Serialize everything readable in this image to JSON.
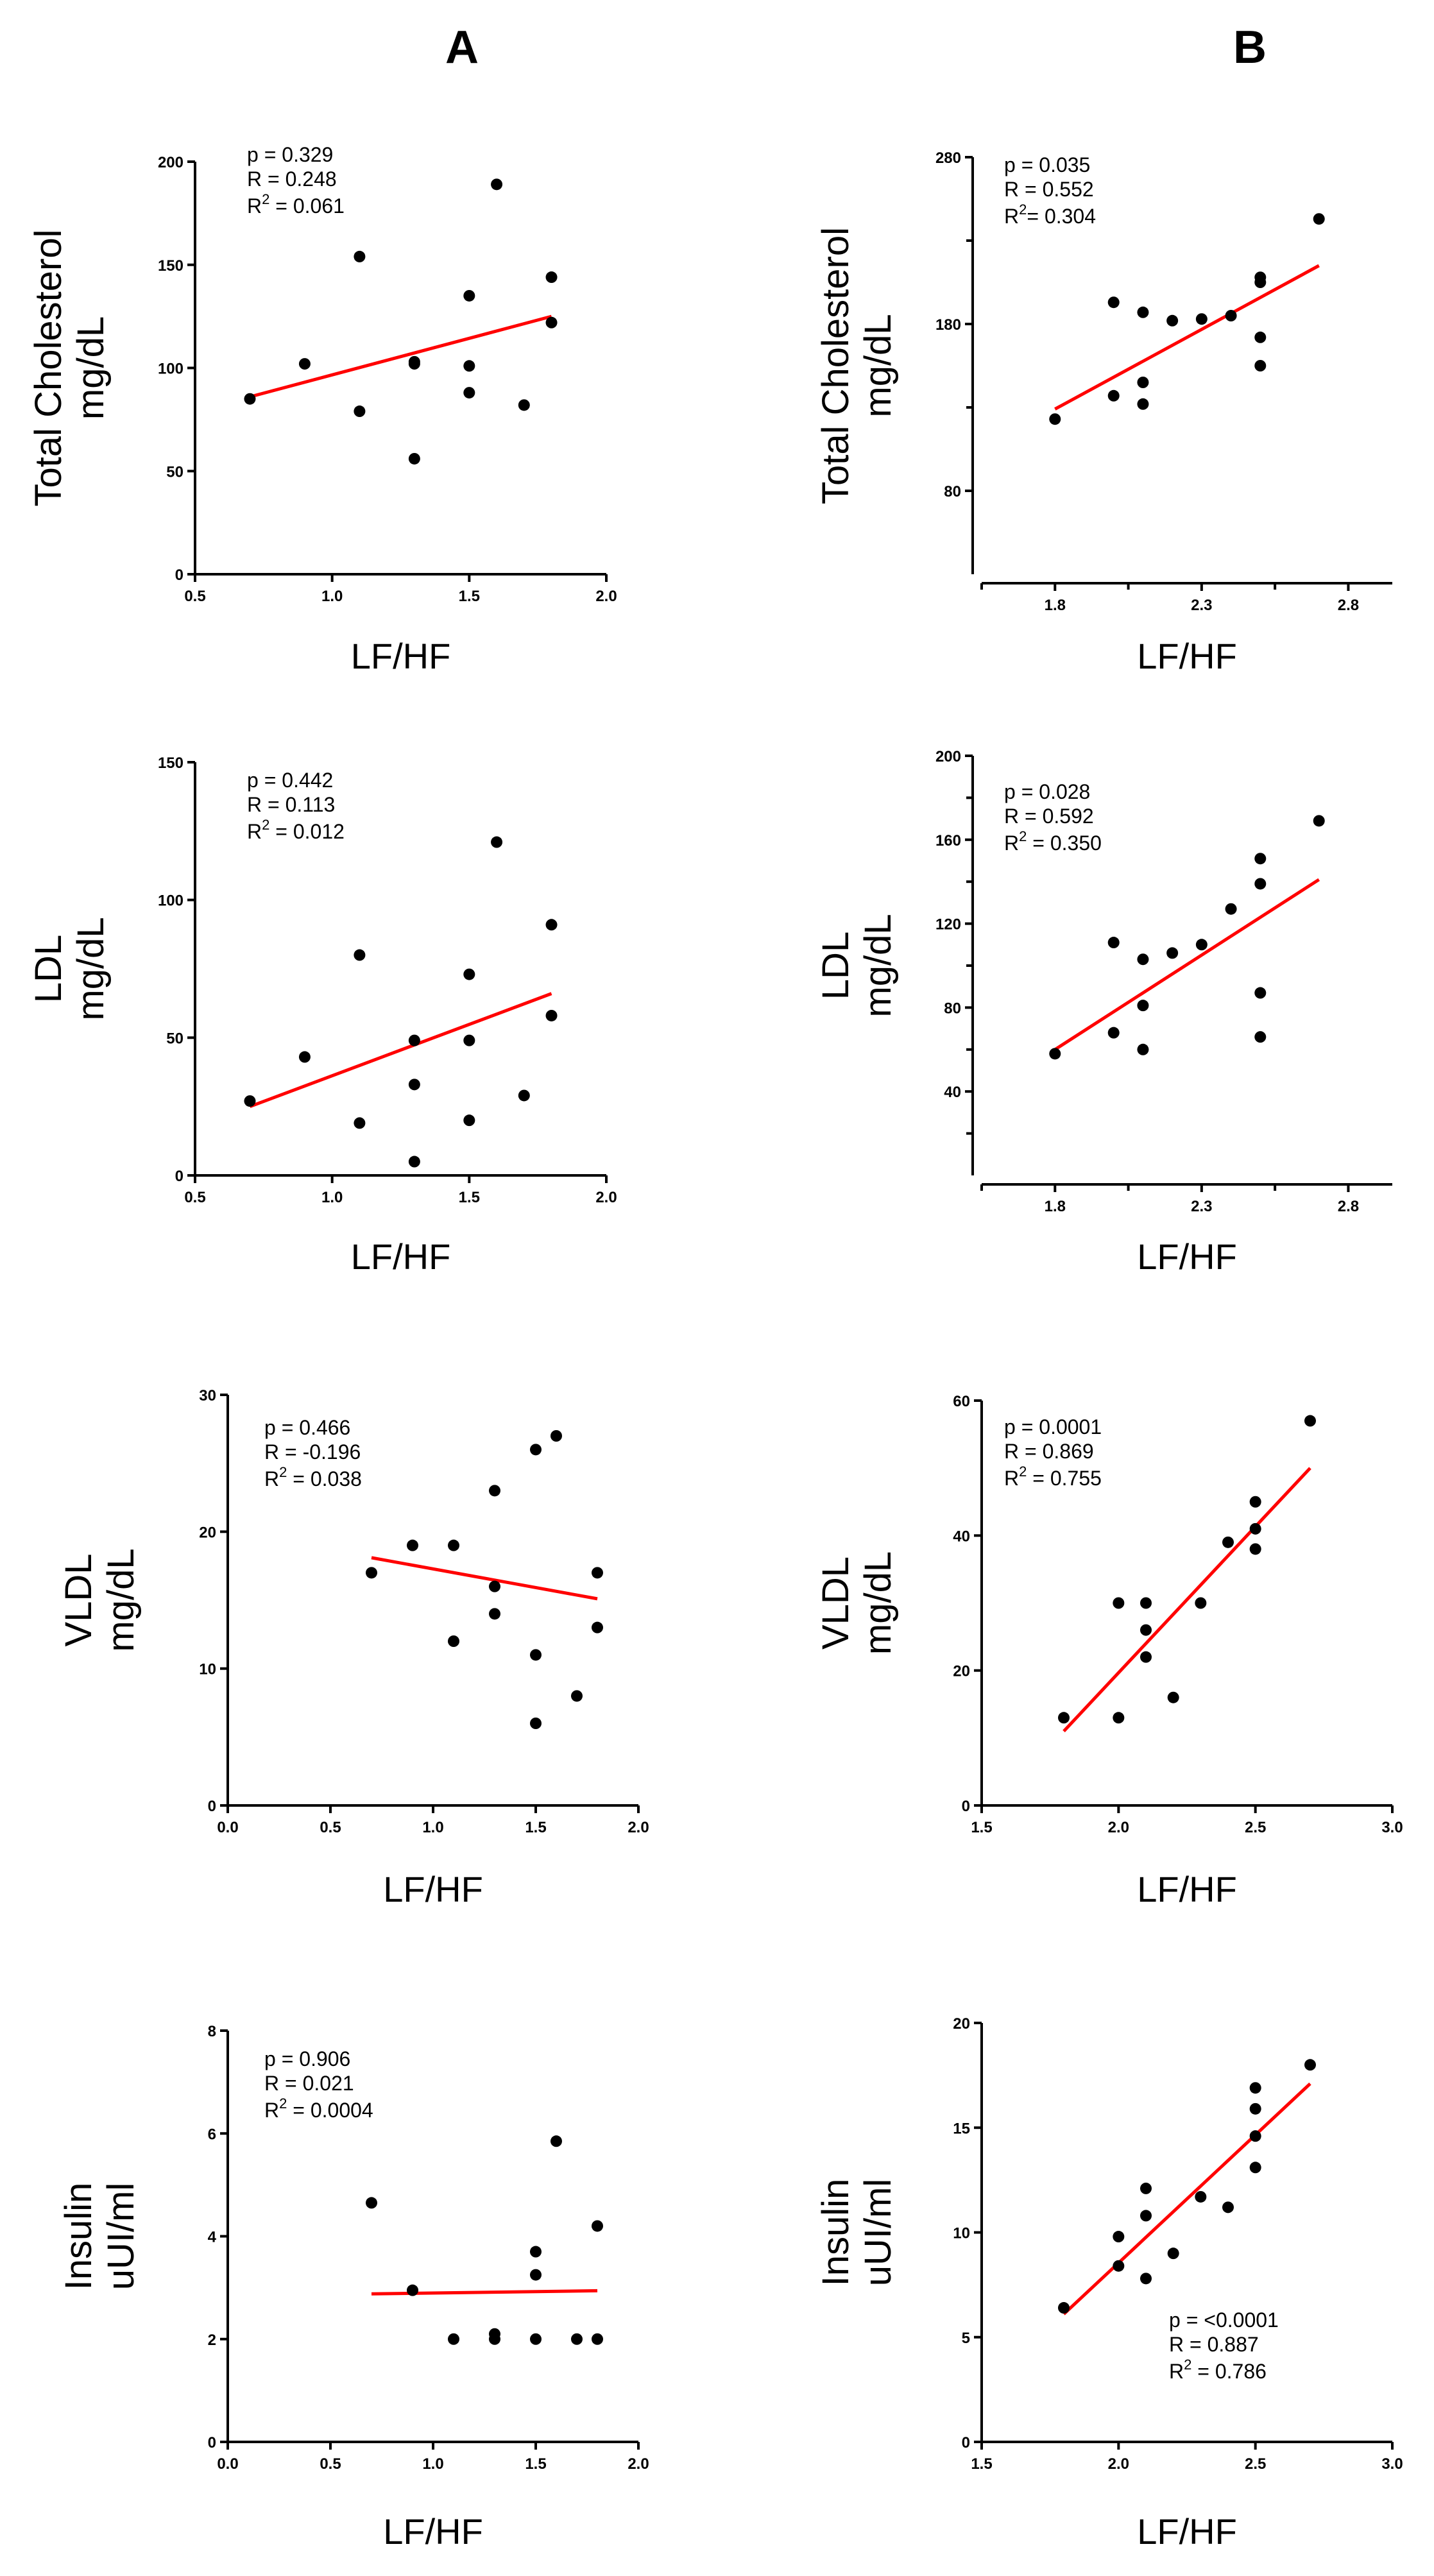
{
  "columns": [
    "A",
    "B"
  ],
  "chart_data": [
    {
      "id": "A1",
      "type": "scatter",
      "column": "A",
      "ylabel": [
        "Total Cholesterol",
        "mg/dL"
      ],
      "xlabel": "LF/HF",
      "xlim": [
        0.5,
        2.0
      ],
      "ylim": [
        0,
        200
      ],
      "xticks": [
        0.5,
        1.0,
        1.5,
        2.0
      ],
      "xtick_labels": [
        "0.5",
        "1.0",
        "1.5",
        "2.0"
      ],
      "yticks": [
        0,
        50,
        100,
        150,
        200
      ],
      "ytick_labels": [
        "0",
        "50",
        "100",
        "150",
        "200"
      ],
      "offset_axes": false,
      "stats_position": "top-left",
      "stats": {
        "p": "p = 0.329",
        "R": "R = 0.248",
        "R2_prefix": "R",
        "R2_value": " = 0.061"
      },
      "points": [
        [
          0.7,
          85
        ],
        [
          0.9,
          102
        ],
        [
          1.1,
          79
        ],
        [
          1.1,
          154
        ],
        [
          1.3,
          56
        ],
        [
          1.3,
          102
        ],
        [
          1.3,
          103
        ],
        [
          1.5,
          101
        ],
        [
          1.5,
          88
        ],
        [
          1.5,
          135
        ],
        [
          1.6,
          189
        ],
        [
          1.7,
          82
        ],
        [
          1.8,
          144
        ],
        [
          1.8,
          122
        ]
      ],
      "fit": [
        [
          0.7,
          86
        ],
        [
          1.8,
          125
        ]
      ]
    },
    {
      "id": "B1",
      "type": "scatter",
      "column": "B",
      "ylabel": [
        "Total Cholesterol",
        "mg/dL"
      ],
      "xlabel": "LF/HF",
      "xlim": [
        1.55,
        2.95
      ],
      "ylim": [
        30,
        280
      ],
      "xticks": [
        1.8,
        2.3,
        2.8
      ],
      "xtick_labels": [
        "1.8",
        "2.3",
        "2.8"
      ],
      "yticks": [
        80,
        180,
        280
      ],
      "ytick_labels": [
        "80",
        "180",
        "280"
      ],
      "offset_axes": true,
      "stats_position": "top-left",
      "stats": {
        "p": "p = 0.035",
        "R": "R = 0.552",
        "R2_prefix": "R",
        "R2_value": "= 0.304"
      },
      "points": [
        [
          1.8,
          123
        ],
        [
          2.0,
          137
        ],
        [
          2.0,
          193
        ],
        [
          2.1,
          132
        ],
        [
          2.1,
          145
        ],
        [
          2.1,
          187
        ],
        [
          2.2,
          182
        ],
        [
          2.3,
          183
        ],
        [
          2.4,
          185
        ],
        [
          2.5,
          155
        ],
        [
          2.5,
          172
        ],
        [
          2.5,
          205
        ],
        [
          2.5,
          208
        ],
        [
          2.7,
          243
        ]
      ],
      "fit": [
        [
          1.8,
          129
        ],
        [
          2.7,
          215
        ]
      ]
    },
    {
      "id": "A2",
      "type": "scatter",
      "column": "A",
      "ylabel": [
        "LDL",
        "mg/dL"
      ],
      "xlabel": "LF/HF",
      "xlim": [
        0.5,
        2.0
      ],
      "ylim": [
        0,
        150
      ],
      "xticks": [
        0.5,
        1.0,
        1.5,
        2.0
      ],
      "xtick_labels": [
        "0.5",
        "1.0",
        "1.5",
        "2.0"
      ],
      "yticks": [
        0,
        50,
        100,
        150
      ],
      "ytick_labels": [
        "0",
        "50",
        "100",
        "150"
      ],
      "offset_axes": false,
      "stats_position": "top-left",
      "stats": {
        "p": "p = 0.442",
        "R": "R = 0.113",
        "R2_prefix": "R",
        "R2_value": " = 0.012"
      },
      "points": [
        [
          0.7,
          27
        ],
        [
          0.9,
          43
        ],
        [
          1.1,
          19
        ],
        [
          1.1,
          80
        ],
        [
          1.3,
          5
        ],
        [
          1.3,
          33
        ],
        [
          1.3,
          49
        ],
        [
          1.5,
          20
        ],
        [
          1.5,
          49
        ],
        [
          1.5,
          73
        ],
        [
          1.6,
          121
        ],
        [
          1.7,
          29
        ],
        [
          1.8,
          58
        ],
        [
          1.8,
          91
        ]
      ],
      "fit": [
        [
          0.7,
          25
        ],
        [
          1.8,
          66
        ]
      ]
    },
    {
      "id": "B2",
      "type": "scatter",
      "column": "B",
      "ylabel": [
        "LDL",
        "mg/dL"
      ],
      "xlabel": "LF/HF",
      "xlim": [
        1.55,
        2.95
      ],
      "ylim": [
        0,
        200
      ],
      "xticks": [
        1.8,
        2.3,
        2.8
      ],
      "xtick_labels": [
        "1.8",
        "2.3",
        "2.8"
      ],
      "yticks": [
        40,
        80,
        120,
        160,
        200
      ],
      "ytick_labels": [
        "40",
        "80",
        "120",
        "160",
        "200"
      ],
      "offset_axes": true,
      "stats_position": "top-left",
      "stats": {
        "p": "p = 0.028",
        "R": "R = 0.592",
        "R2_prefix": "R",
        "R2_value": " = 0.350"
      },
      "points": [
        [
          1.8,
          58
        ],
        [
          2.0,
          68
        ],
        [
          2.0,
          111
        ],
        [
          2.1,
          60
        ],
        [
          2.1,
          81
        ],
        [
          2.1,
          103
        ],
        [
          2.2,
          106
        ],
        [
          2.3,
          110
        ],
        [
          2.4,
          127
        ],
        [
          2.5,
          66
        ],
        [
          2.5,
          87
        ],
        [
          2.5,
          139
        ],
        [
          2.5,
          151
        ],
        [
          2.7,
          169
        ]
      ],
      "fit": [
        [
          1.8,
          60
        ],
        [
          2.7,
          141
        ]
      ]
    },
    {
      "id": "A3",
      "type": "scatter",
      "column": "A",
      "ylabel": [
        "VLDL",
        "mg/dL"
      ],
      "xlabel": "LF/HF",
      "xlim": [
        0.0,
        2.0
      ],
      "ylim": [
        0,
        30
      ],
      "xticks": [
        0.0,
        0.5,
        1.0,
        1.5,
        2.0
      ],
      "xtick_labels": [
        "0.0",
        "0.5",
        "1.0",
        "1.5",
        "2.0"
      ],
      "yticks": [
        0,
        10,
        20,
        30
      ],
      "ytick_labels": [
        "0",
        "10",
        "20",
        "30"
      ],
      "offset_axes": false,
      "stats_position": "top-left",
      "stats": {
        "p": "p = 0.466",
        "R": "R = -0.196",
        "R2_prefix": "R",
        "R2_value": " = 0.038"
      },
      "points": [
        [
          0.7,
          17
        ],
        [
          0.9,
          19
        ],
        [
          1.1,
          19
        ],
        [
          1.1,
          12
        ],
        [
          1.3,
          23
        ],
        [
          1.3,
          16
        ],
        [
          1.3,
          14
        ],
        [
          1.5,
          26
        ],
        [
          1.5,
          11
        ],
        [
          1.5,
          6
        ],
        [
          1.6,
          27
        ],
        [
          1.7,
          8
        ],
        [
          1.8,
          17
        ],
        [
          1.8,
          13
        ]
      ],
      "fit": [
        [
          0.7,
          18.1
        ],
        [
          1.8,
          15.1
        ]
      ]
    },
    {
      "id": "B3",
      "type": "scatter",
      "column": "B",
      "ylabel": [
        "VLDL",
        "mg/dL"
      ],
      "xlabel": "LF/HF",
      "xlim": [
        1.5,
        3.0
      ],
      "ylim": [
        0,
        60
      ],
      "xticks": [
        1.5,
        2.0,
        2.5,
        3.0
      ],
      "xtick_labels": [
        "1.5",
        "2.0",
        "2.5",
        "3.0"
      ],
      "yticks": [
        0,
        20,
        40,
        60
      ],
      "ytick_labels": [
        "0",
        "20",
        "40",
        "60"
      ],
      "offset_axes": false,
      "stats_position": "top-left",
      "stats": {
        "p": "p = 0.0001",
        "R": "R = 0.869",
        "R2_prefix": "R",
        "R2_value": " = 0.755"
      },
      "points": [
        [
          1.8,
          13
        ],
        [
          2.0,
          13
        ],
        [
          2.0,
          30
        ],
        [
          2.1,
          30
        ],
        [
          2.1,
          26
        ],
        [
          2.1,
          22
        ],
        [
          2.2,
          16
        ],
        [
          2.3,
          30
        ],
        [
          2.4,
          39
        ],
        [
          2.5,
          45
        ],
        [
          2.5,
          41
        ],
        [
          2.5,
          38
        ],
        [
          2.7,
          57
        ]
      ],
      "fit": [
        [
          1.8,
          11
        ],
        [
          2.7,
          50
        ]
      ]
    },
    {
      "id": "A4",
      "type": "scatter",
      "column": "A",
      "ylabel": [
        "Insulin",
        "uUI/ml"
      ],
      "xlabel": "LF/HF",
      "xlim": [
        0.0,
        2.0
      ],
      "ylim": [
        0,
        8
      ],
      "xticks": [
        0.0,
        0.5,
        1.0,
        1.5,
        2.0
      ],
      "xtick_labels": [
        "0.0",
        "0.5",
        "1.0",
        "1.5",
        "2.0"
      ],
      "yticks": [
        0,
        2,
        4,
        6,
        8
      ],
      "ytick_labels": [
        "0",
        "2",
        "4",
        "6",
        "8"
      ],
      "offset_axes": false,
      "stats_position": "top-left",
      "stats": {
        "p": "p = 0.906",
        "R": "R = 0.021",
        "R2_prefix": "R",
        "R2_value": " = 0.0004"
      },
      "points": [
        [
          0.7,
          4.65
        ],
        [
          0.9,
          2.95
        ],
        [
          1.1,
          2.0
        ],
        [
          1.3,
          2.0
        ],
        [
          1.3,
          2.1
        ],
        [
          1.5,
          2.0
        ],
        [
          1.5,
          3.25
        ],
        [
          1.5,
          3.7
        ],
        [
          1.6,
          5.85
        ],
        [
          1.7,
          2.0
        ],
        [
          1.8,
          2.0
        ],
        [
          1.8,
          4.2
        ]
      ],
      "fit": [
        [
          0.7,
          2.88
        ],
        [
          1.8,
          2.94
        ]
      ]
    },
    {
      "id": "B4",
      "type": "scatter",
      "column": "B",
      "ylabel": [
        "Insulin",
        "uUI/ml"
      ],
      "xlabel": "LF/HF",
      "xlim": [
        1.5,
        3.0
      ],
      "ylim": [
        0,
        20
      ],
      "xticks": [
        1.5,
        2.0,
        2.5,
        3.0
      ],
      "xtick_labels": [
        "1.5",
        "2.0",
        "2.5",
        "3.0"
      ],
      "yticks": [
        0,
        5,
        10,
        15,
        20
      ],
      "ytick_labels": [
        "0",
        "5",
        "10",
        "15",
        "20"
      ],
      "offset_axes": false,
      "stats_position": "bottom-right",
      "stats": {
        "p": "p = <0.0001",
        "R": "R = 0.887",
        "R2_prefix": "R",
        "R2_value": " = 0.786"
      },
      "points": [
        [
          1.8,
          6.4
        ],
        [
          2.0,
          8.4
        ],
        [
          2.0,
          9.8
        ],
        [
          2.1,
          7.8
        ],
        [
          2.1,
          10.8
        ],
        [
          2.1,
          12.1
        ],
        [
          2.2,
          9.0
        ],
        [
          2.3,
          11.7
        ],
        [
          2.4,
          11.2
        ],
        [
          2.5,
          13.1
        ],
        [
          2.5,
          14.6
        ],
        [
          2.5,
          15.9
        ],
        [
          2.5,
          16.9
        ],
        [
          2.7,
          18.0
        ]
      ],
      "fit": [
        [
          1.8,
          6.1
        ],
        [
          2.7,
          17.1
        ]
      ]
    }
  ]
}
